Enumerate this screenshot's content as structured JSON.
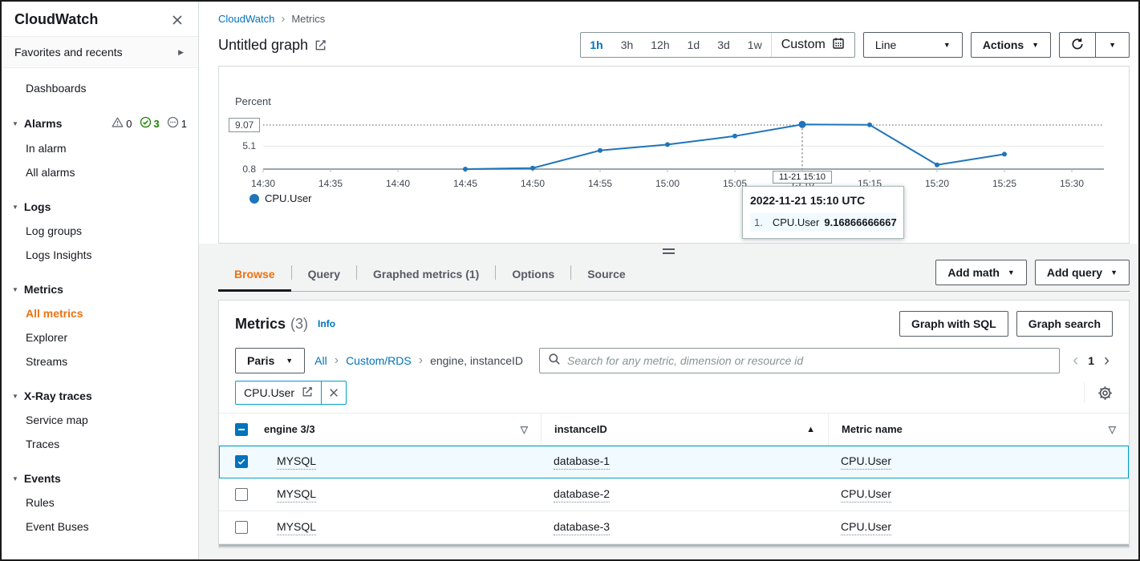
{
  "sidebar": {
    "title": "CloudWatch",
    "favorites_label": "Favorites and recents",
    "dashboards_label": "Dashboards",
    "alarms": {
      "label": "Alarms",
      "warning_count": "0",
      "ok_count": "3",
      "insufficient_count": "1",
      "children": [
        "In alarm",
        "All alarms"
      ]
    },
    "logs": {
      "label": "Logs",
      "children": [
        "Log groups",
        "Logs Insights"
      ]
    },
    "metrics": {
      "label": "Metrics",
      "children": [
        "All metrics",
        "Explorer",
        "Streams"
      ],
      "active_child": "All metrics"
    },
    "xray": {
      "label": "X-Ray traces",
      "children": [
        "Service map",
        "Traces"
      ]
    },
    "events": {
      "label": "Events",
      "children": [
        "Rules",
        "Event Buses"
      ]
    }
  },
  "breadcrumb": {
    "root": "CloudWatch",
    "current": "Metrics"
  },
  "graph_header": {
    "title": "Untitled graph",
    "ranges": [
      "1h",
      "3h",
      "12h",
      "1d",
      "3d",
      "1w"
    ],
    "selected_range": "1h",
    "custom_label": "Custom",
    "chart_type_label": "Line",
    "actions_label": "Actions"
  },
  "chart_data": {
    "type": "line",
    "unit_label": "Percent",
    "y_axis": {
      "min": 0.8,
      "max": 10.5
    },
    "y_ticks": [
      {
        "value": 9.07,
        "label": "9.07",
        "boxed": true
      },
      {
        "value": 5.1,
        "label": "5.1"
      },
      {
        "value": 0.8,
        "label": "0.8"
      }
    ],
    "x_ticks": [
      "14:30",
      "14:35",
      "14:40",
      "14:45",
      "14:50",
      "14:55",
      "15:00",
      "15:05",
      "15:10",
      "15:15",
      "15:20",
      "15:25",
      "15:30"
    ],
    "series": [
      {
        "name": "CPU.User",
        "color": "#2074ba",
        "x": [
          "14:45",
          "14:50",
          "14:55",
          "15:00",
          "15:05",
          "15:10",
          "15:15",
          "15:20",
          "15:25"
        ],
        "values": [
          0.8,
          1.0,
          4.3,
          5.4,
          7.0,
          9.16866666667,
          9.1,
          1.6,
          3.6
        ]
      }
    ],
    "legend": {
      "position": "bottom",
      "entries": [
        "CPU.User"
      ]
    },
    "crosshair": {
      "x": "15:10",
      "value": 9.16866666667,
      "axis_label": "11-21 15:10"
    },
    "tooltip": {
      "title": "2022-11-21 15:10 UTC",
      "rows": [
        {
          "index": "1.",
          "series": "CPU.User",
          "value": "9.16866666667",
          "color": "#2074ba"
        }
      ]
    }
  },
  "tabs": {
    "items": [
      "Browse",
      "Query",
      "Graphed metrics (1)",
      "Options",
      "Source"
    ],
    "active": "Browse"
  },
  "tab_actions": {
    "add_math": "Add math",
    "add_query": "Add query"
  },
  "metrics_panel": {
    "title": "Metrics",
    "count": "(3)",
    "info_label": "Info",
    "graph_with_sql_label": "Graph with SQL",
    "graph_search_label": "Graph search",
    "region_label": "Paris",
    "filter_path": {
      "all": "All",
      "namespace": "Custom/RDS",
      "dimensions": "engine, instanceID"
    },
    "search_placeholder": "Search for any metric, dimension or resource id",
    "page_number": "1",
    "metric_chip": "CPU.User",
    "table": {
      "columns": [
        {
          "label": "engine 3/3",
          "icon": "filter"
        },
        {
          "label": "instanceID",
          "icon": "sort-asc"
        },
        {
          "label": "Metric name",
          "icon": "filter"
        }
      ],
      "rows": [
        {
          "engine": "MYSQL",
          "instance_id": "database-1",
          "metric_name": "CPU.User",
          "selected": true
        },
        {
          "engine": "MYSQL",
          "instance_id": "database-2",
          "metric_name": "CPU.User",
          "selected": false
        },
        {
          "engine": "MYSQL",
          "instance_id": "database-3",
          "metric_name": "CPU.User",
          "selected": false
        }
      ]
    }
  },
  "colors": {
    "link_blue": "#0073bb",
    "accent_orange": "#ec7211",
    "chart_line": "#2074ba",
    "selection_cyan": "#00a1c9",
    "ok_green": "#1d8102",
    "text": "#16191f",
    "secondary_text": "#545b64"
  }
}
